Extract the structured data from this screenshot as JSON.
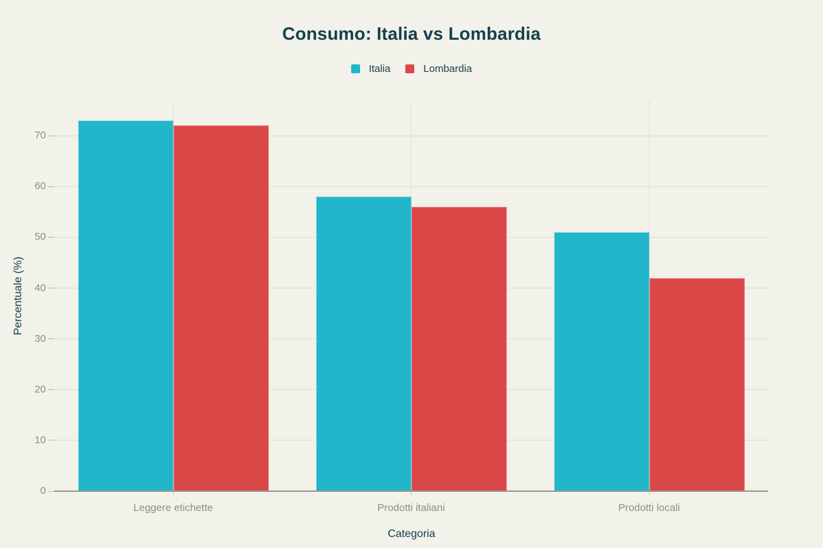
{
  "chart_data": {
    "type": "bar",
    "title": "Consumo: Italia vs Lombardia",
    "xlabel": "Categoria",
    "ylabel": "Percentuale (%)",
    "categories": [
      "Leggere etichette",
      "Prodotti italiani",
      "Prodotti locali"
    ],
    "series": [
      {
        "name": "Italia",
        "color": "#21b6c9",
        "values": [
          73,
          58,
          51
        ]
      },
      {
        "name": "Lombardia",
        "color": "#d94747",
        "values": [
          72,
          56,
          42
        ]
      }
    ],
    "y_ticks": [
      0,
      10,
      20,
      30,
      40,
      50,
      60,
      70
    ],
    "ylim": [
      0,
      76.9
    ],
    "grid": true,
    "legend_position": "top"
  },
  "colors": {
    "background": "#f2f1ea",
    "gridline": "#dfddd4",
    "axis_line": "#98978f",
    "tick_label": "#8e8d86",
    "text": "#15404c"
  }
}
